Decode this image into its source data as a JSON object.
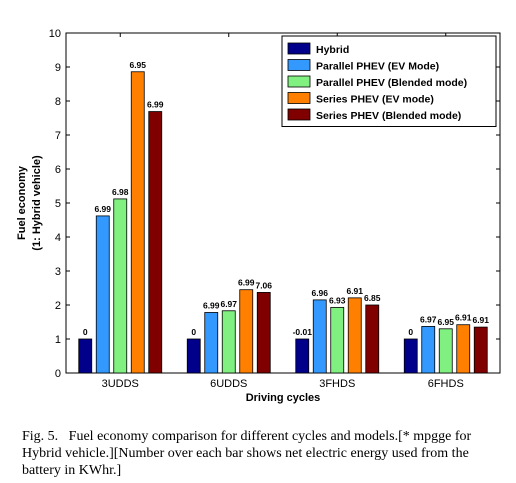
{
  "chart_data": {
    "type": "bar",
    "xlabel": "Driving cycles",
    "ylabel_lines": [
      "Fuel economy",
      "(1: Hybrid vehicle)"
    ],
    "ylim": [
      0,
      10
    ],
    "yticks": [
      0,
      1,
      2,
      3,
      4,
      5,
      6,
      7,
      8,
      9,
      10
    ],
    "grid": false,
    "legend_position": "top-right",
    "categories": [
      "3UDDS",
      "6UDDS",
      "3FHDS",
      "6FHDS"
    ],
    "series": [
      {
        "name": "Hybrid",
        "color": "#00008b",
        "values": [
          1,
          1,
          1,
          1
        ],
        "labels": [
          "0",
          "0",
          "-0.01",
          "0"
        ]
      },
      {
        "name": "Parallel PHEV (EV Mode)",
        "color": "#3399ff",
        "values": [
          4.62,
          1.78,
          2.15,
          1.37
        ],
        "labels": [
          "6.99",
          "6.99",
          "6.96",
          "6.97"
        ]
      },
      {
        "name": "Parallel PHEV (Blended mode)",
        "color": "#80f080",
        "values": [
          5.12,
          1.83,
          1.93,
          1.3
        ],
        "labels": [
          "6.98",
          "6.97",
          "6.93",
          "6.95"
        ]
      },
      {
        "name": "Series PHEV (EV mode)",
        "color": "#ff7f00",
        "values": [
          8.86,
          2.45,
          2.21,
          1.42
        ],
        "labels": [
          "6.95",
          "6.99",
          "6.91",
          "6.91"
        ]
      },
      {
        "name": "Series PHEV (Blended mode)",
        "color": "#800000",
        "values": [
          7.69,
          2.37,
          2.0,
          1.35
        ],
        "labels": [
          "6.99",
          "7.06",
          "6.85",
          "6.91"
        ]
      }
    ]
  },
  "caption": "Fig. 5.   Fuel economy comparison for different cycles and models.[* mpgge for Hybrid vehicle.][Number over each bar shows net electric energy used from the battery in KWhr.]"
}
